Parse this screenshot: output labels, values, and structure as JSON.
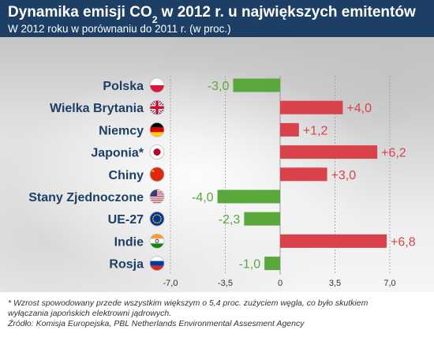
{
  "header": {
    "title_pre": "Dynamika emisji CO",
    "title_sub": "2",
    "title_post": " w 2012 r. u największych emitentów",
    "subtitle": "W 2012 roku w porównaniu do 2011 r. (w proc.)"
  },
  "chart_data": {
    "type": "bar",
    "orientation": "horizontal",
    "categories": [
      "Polska",
      "Wielka Brytania",
      "Niemcy",
      "Japonia*",
      "Chiny",
      "Stany Zjednoczone",
      "UE-27",
      "Indie",
      "Rosja"
    ],
    "values": [
      -3.0,
      4.0,
      1.2,
      6.2,
      3.0,
      -4.0,
      -2.3,
      6.8,
      -1.0
    ],
    "value_labels": [
      "-3,0",
      "+4,0",
      "+1,2",
      "+6,2",
      "+3,0",
      "-4,0",
      "-2,3",
      "+6,8",
      "-1,0"
    ],
    "flags": [
      "flag-poland-icon",
      "flag-uk-icon",
      "flag-germany-icon",
      "flag-japan-icon",
      "flag-china-icon",
      "flag-usa-icon",
      "flag-eu-icon",
      "flag-india-icon",
      "flag-russia-icon"
    ],
    "xlim": [
      -7.0,
      7.0
    ],
    "xticks": [
      -7.0,
      -3.5,
      0,
      3.5,
      7.0
    ],
    "xtick_labels": [
      "-7,0",
      "-3,5",
      "0",
      "3,5",
      "7,0"
    ],
    "colors": {
      "positive": "#d9424a",
      "negative": "#5aa73c",
      "category_text": "#1d3f66"
    }
  },
  "footer": {
    "note_line1": "* Wzrost spowodowany przede wszystkim większym o 5,4 proc. zużyciem węgla, co było skutkiem",
    "note_line2": "wyłączania japońskich elektrowni jądrowych.",
    "source": "Źródło: Komisja Europejska, PBL Netherlands Environmental Assesment Agency"
  }
}
